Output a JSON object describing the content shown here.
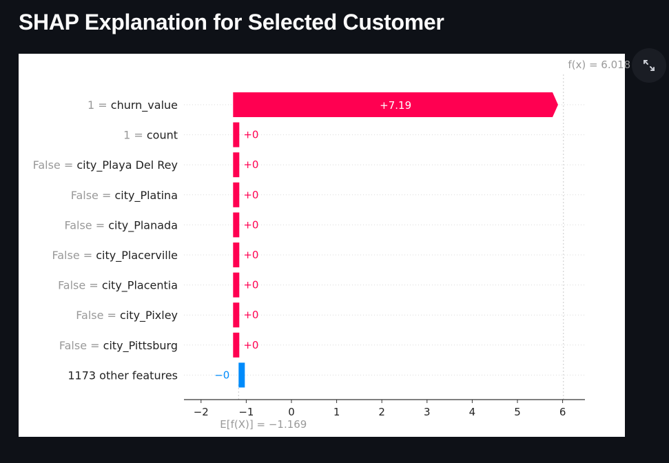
{
  "page": {
    "title": "SHAP Explanation for Selected Customer"
  },
  "toolbar": {
    "expand_icon": "expand-arrows-icon"
  },
  "colors": {
    "positive": "#ff0051",
    "negative": "#008bfb",
    "background": "#0e1117",
    "panel": "#ffffff"
  },
  "chart_data": {
    "type": "bar",
    "subtype": "shap-waterfall",
    "base_value_label": "E[f(X)] = −1.169",
    "fx_label": "f(x) = 6.018",
    "base_value": -1.169,
    "fx": 6.018,
    "xlim": [
      -2.3,
      6.5
    ],
    "xticks": [
      "−2",
      "−1",
      "0",
      "1",
      "2",
      "3",
      "4",
      "5",
      "6"
    ],
    "xtick_values": [
      -2,
      -1,
      0,
      1,
      2,
      3,
      4,
      5,
      6
    ],
    "grid": false,
    "features": [
      {
        "value_text": "1",
        "name": "churn_value",
        "contribution": 7.19,
        "label": "+7.19"
      },
      {
        "value_text": "1",
        "name": "count",
        "contribution": 0,
        "label": "+0"
      },
      {
        "value_text": "False",
        "name": "city_Playa Del Rey",
        "contribution": 0,
        "label": "+0"
      },
      {
        "value_text": "False",
        "name": "city_Platina",
        "contribution": 0,
        "label": "+0"
      },
      {
        "value_text": "False",
        "name": "city_Planada",
        "contribution": 0,
        "label": "+0"
      },
      {
        "value_text": "False",
        "name": "city_Placerville",
        "contribution": 0,
        "label": "+0"
      },
      {
        "value_text": "False",
        "name": "city_Placentia",
        "contribution": 0,
        "label": "+0"
      },
      {
        "value_text": "False",
        "name": "city_Pixley",
        "contribution": 0,
        "label": "+0"
      },
      {
        "value_text": "False",
        "name": "city_Pittsburg",
        "contribution": 0,
        "label": "+0"
      },
      {
        "value_text": "",
        "name": "1173 other features",
        "contribution": 0,
        "label": "−0"
      }
    ]
  }
}
